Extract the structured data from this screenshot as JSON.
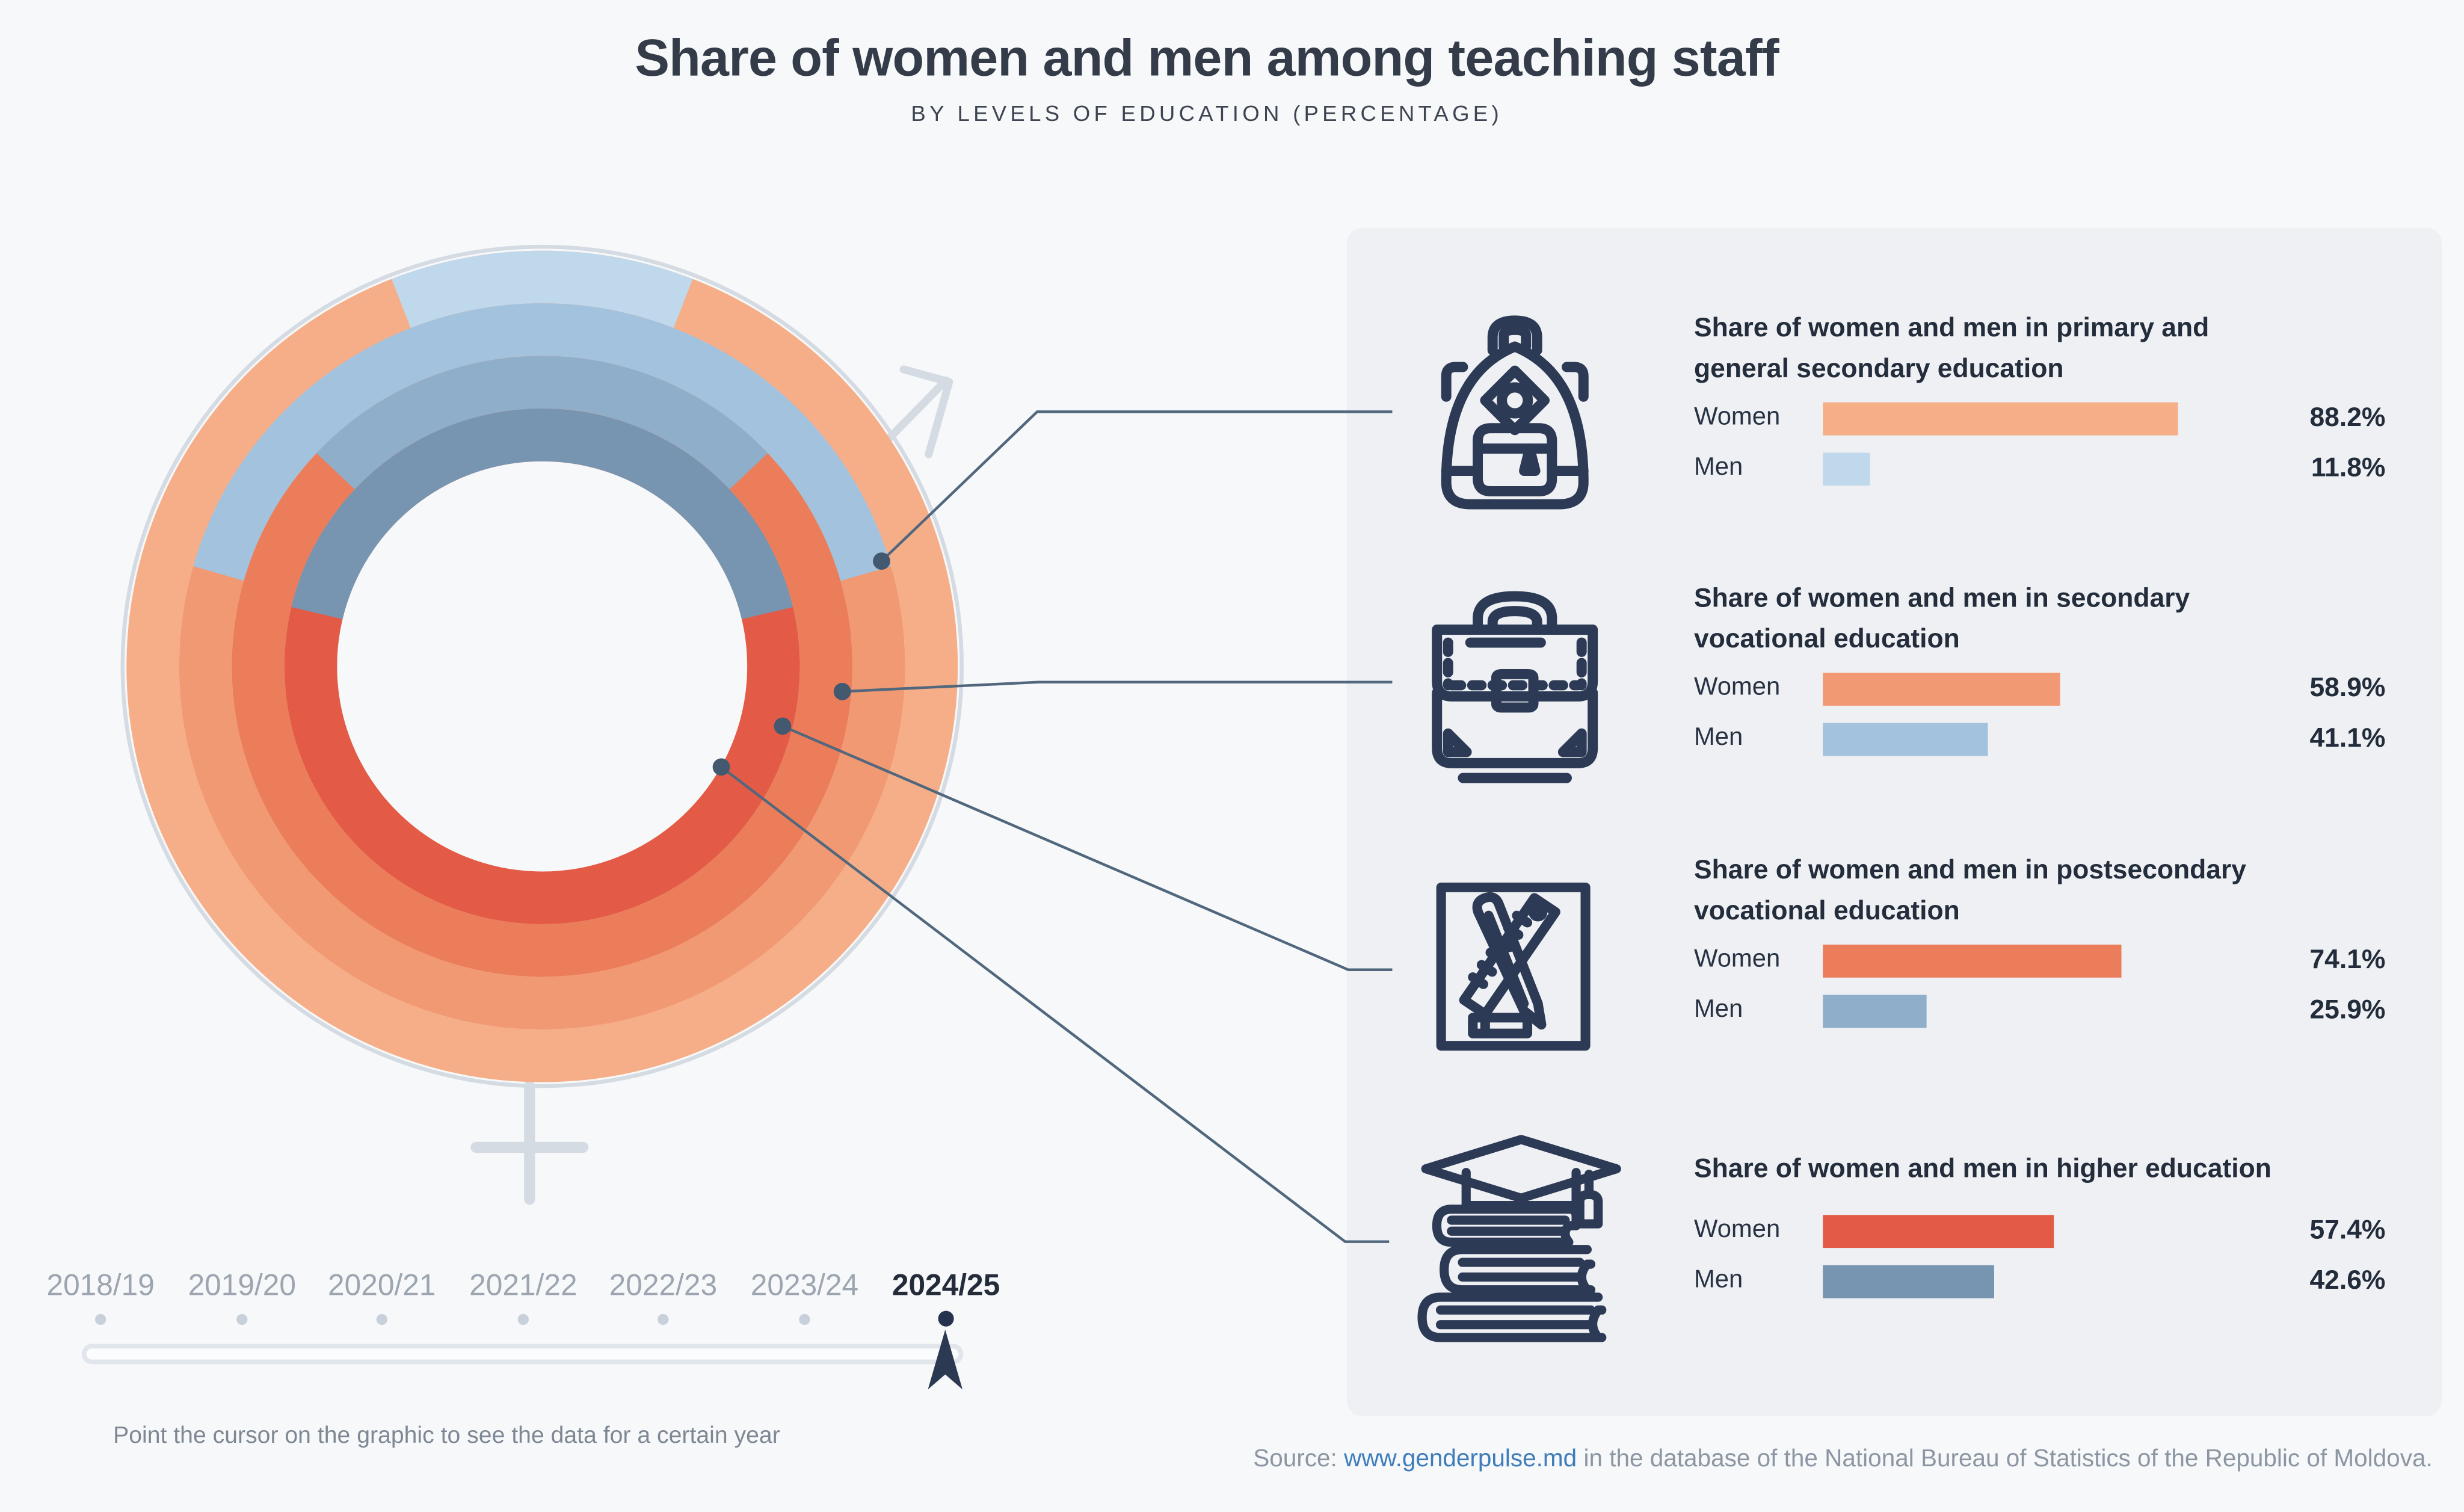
{
  "title": "Share of women and men among teaching staff",
  "subtitle": "BY LEVELS OF EDUCATION (PERCENTAGE)",
  "labels": {
    "women": "Women",
    "men": "Men"
  },
  "timeline": {
    "years": [
      "2018/19",
      "2019/20",
      "2020/21",
      "2021/22",
      "2022/23",
      "2023/24",
      "2024/25"
    ],
    "selected_year": "2024/25",
    "hint": "Point the cursor on the graphic to see the data for a certain year"
  },
  "source": {
    "prefix": "Source: ",
    "link_text": "www.genderpulse.md",
    "suffix": " in the database of the National Bureau of Statistics of the Republic of Moldova.",
    "link_color": "#3E7CBB"
  },
  "colors": {
    "page_bg": "#F7F8F9",
    "panel_bg": "#EEF0F4",
    "icon_stroke": "#2C3A55",
    "leader_line": "#50677D",
    "leader_dot": "#42596F",
    "decor_grey": "#D5DBE3",
    "year_grey": "#9CA5B0",
    "year_selected": "#242C3A"
  },
  "chart_data": {
    "type": "donut-multi-ring",
    "title": "Share of women and men among teaching staff",
    "unit": "percent",
    "year_shown": "2024/25",
    "rings_order": "outer_to_inner",
    "men_arc_centered_at_top": true,
    "legend": [
      "Women",
      "Men"
    ],
    "levels": [
      {
        "id": "primary-general-secondary",
        "heading": "Share of women and men in primary and\ngeneral secondary education",
        "icon": "backpack-icon",
        "women": 88.2,
        "men": 11.8,
        "women_label": "88.2%",
        "men_label": "11.8%",
        "women_color": "#F6AE88",
        "men_color": "#BFD8EC"
      },
      {
        "id": "secondary-vocational",
        "heading": "Share of women and men in secondary\nvocational education",
        "icon": "briefcase-icon",
        "women": 58.9,
        "men": 41.1,
        "women_label": "58.9%",
        "men_label": "41.1%",
        "women_color": "#F19972",
        "men_color": "#A3C2DD"
      },
      {
        "id": "postsecondary-vocational",
        "heading": "Share of women and men in postsecondary\nvocational education",
        "icon": "pencil-ruler-icon",
        "women": 74.1,
        "men": 25.9,
        "women_label": "74.1%",
        "men_label": "25.9%",
        "women_color": "#EB7D5A",
        "men_color": "#8FAEC9"
      },
      {
        "id": "higher-education",
        "heading": "Share of women and men in higher education",
        "icon": "graduation-books-icon",
        "women": 57.4,
        "men": 42.6,
        "women_label": "57.4%",
        "men_label": "42.6%",
        "women_color": "#E35B46",
        "men_color": "#7795B1"
      }
    ]
  }
}
